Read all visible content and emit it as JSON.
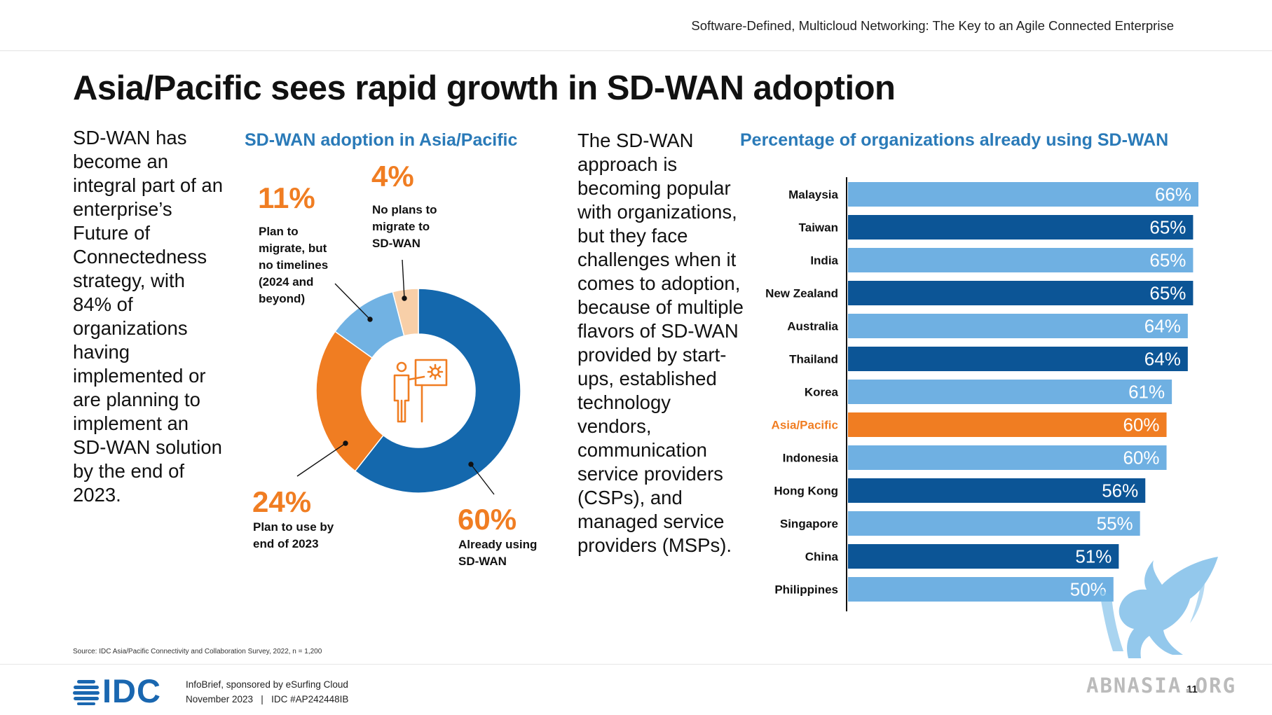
{
  "header": {
    "title": "Software-Defined, Multicloud Networking: The Key to an Agile Connected Enterprise"
  },
  "page": {
    "title": "Asia/Pacific sees rapid growth in SD-WAN adoption",
    "intro_text": "SD-WAN has become an integral part of an enterprise’s Future of Connectedness strategy, with 84% of organizations having implemented or are planning to implement an SD-WAN solution by the end of 2023.",
    "body_text": "The SD-WAN approach is becoming popular with organizations, but they face challenges when it comes to adoption, because of multiple flavors of SD-WAN provided by start-ups, established technology vendors, communication service providers (CSPs), and managed service providers (MSPs).",
    "source": "Source: IDC Asia/Pacific Connectivity and Collaboration Survey, 2022, n = 1,200"
  },
  "footer": {
    "logo": "IDC",
    "line1": "InfoBrief, sponsored by eSurfing Cloud",
    "line2": "November 2023   |   IDC #AP242448IB",
    "page_number": "11"
  },
  "watermark": {
    "text": "ABNASIA.ORG"
  },
  "colors": {
    "dark_blue": "#0f62a8",
    "light_blue": "#6fb0e2",
    "orange": "#f07d22",
    "peach": "#f8cfa8",
    "heading_blue": "#2a7ab8"
  },
  "chart_data": [
    {
      "type": "pie",
      "title": "SD-WAN adoption in Asia/Pacific",
      "slices": [
        {
          "value": 60,
          "label_value": "60%",
          "label": "Already using SD-WAN",
          "color": "#1468ad"
        },
        {
          "value": 24,
          "label_value": "24%",
          "label": "Plan to use by end of 2023",
          "color": "#f07d22"
        },
        {
          "value": 11,
          "label_value": "11%",
          "label": "Plan to migrate, but no timelines (2024 and beyond)",
          "color": "#71b2e3"
        },
        {
          "value": 4,
          "label_value": "4%",
          "label": "No plans to migrate to SD-WAN",
          "color": "#f8cfa8"
        }
      ]
    },
    {
      "type": "bar",
      "orientation": "horizontal",
      "title": "Percentage of organizations already using SD-WAN",
      "categories": [
        "Malaysia",
        "Taiwan",
        "India",
        "New Zealand",
        "Australia",
        "Thailand",
        "Korea",
        "Asia/Pacific",
        "Indonesia",
        "Hong Kong",
        "Singapore",
        "China",
        "Philippines"
      ],
      "values": [
        66,
        65,
        65,
        65,
        64,
        64,
        61,
        60,
        60,
        56,
        55,
        51,
        50
      ],
      "value_labels": [
        "66%",
        "65%",
        "65%",
        "65%",
        "64%",
        "64%",
        "61%",
        "60%",
        "60%",
        "56%",
        "55%",
        "51%",
        "50%"
      ],
      "bar_colors": [
        "#6fb0e2",
        "#0c5596",
        "#6fb0e2",
        "#0c5596",
        "#6fb0e2",
        "#0c5596",
        "#6fb0e2",
        "#f07d22",
        "#6fb0e2",
        "#0c5596",
        "#6fb0e2",
        "#0c5596",
        "#6fb0e2"
      ],
      "highlight": "Asia/Pacific",
      "xlim": [
        0,
        66
      ]
    }
  ]
}
